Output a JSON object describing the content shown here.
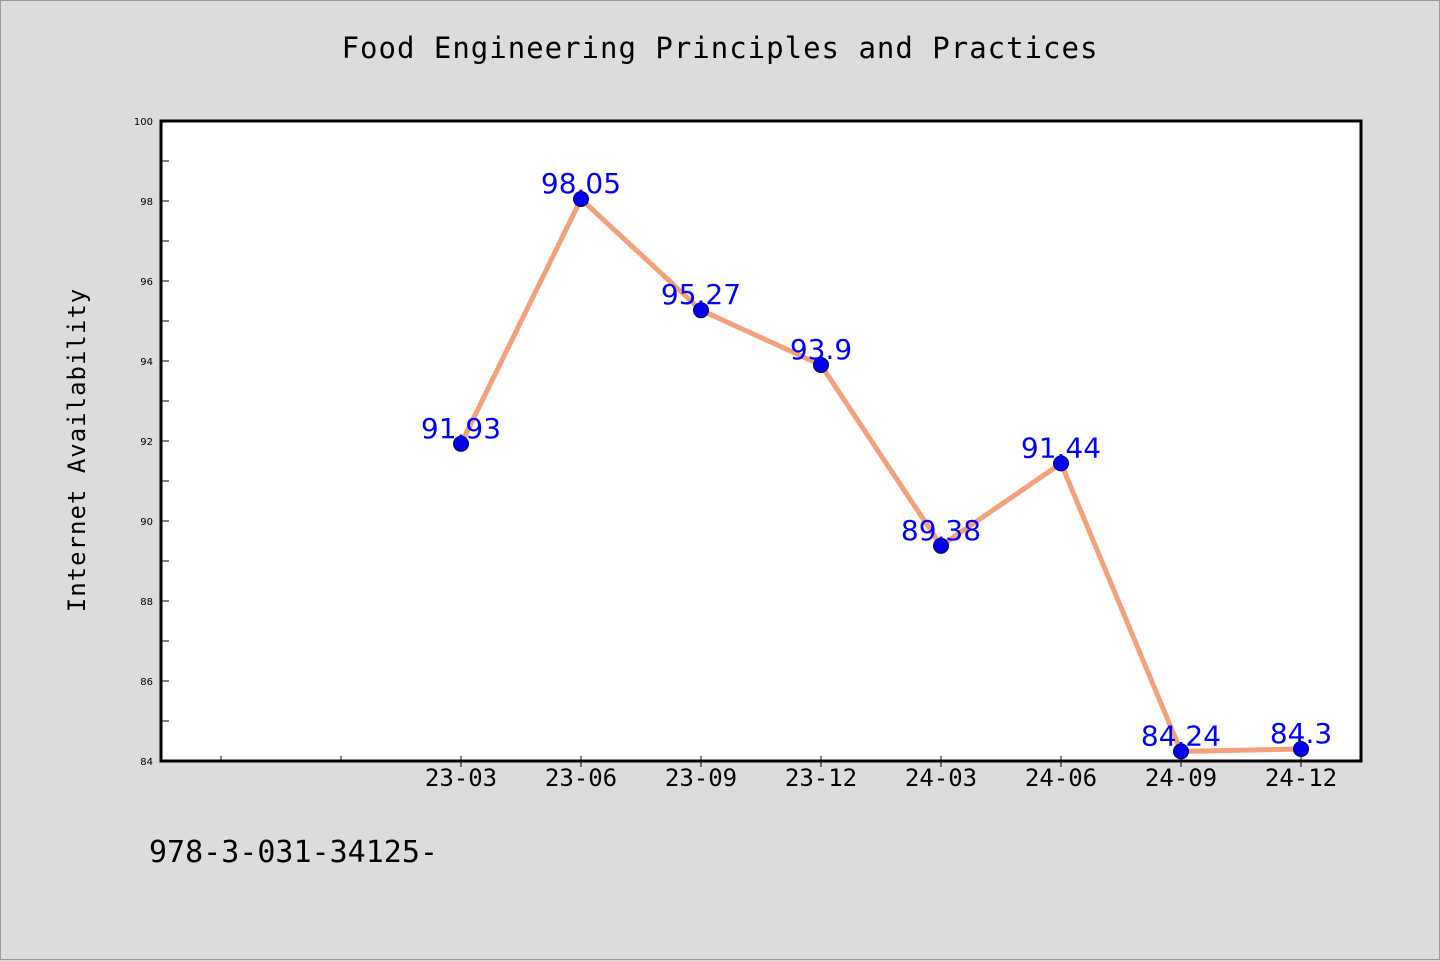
{
  "footer": {
    "text": "978-3-031-34125-"
  },
  "colors": {
    "background": "#dcdcdc",
    "plot_background": "#ffffff",
    "line": "#f4a07a",
    "marker": "#0000ee",
    "data_label": "#0000ff",
    "axis": "#000000"
  },
  "chart_data": {
    "type": "line",
    "title": "Food Engineering Principles and Practices",
    "xlabel": "",
    "ylabel": "Internet Availability",
    "categories": [
      "23-03",
      "23-06",
      "23-09",
      "23-12",
      "24-03",
      "24-06",
      "24-09",
      "24-12"
    ],
    "series": [
      {
        "values": [
          91.93,
          98.05,
          95.27,
          93.9,
          89.38,
          91.44,
          84.24,
          84.3
        ],
        "labels": [
          "91.93",
          "98.05",
          "95.27",
          "93.9",
          "89.38",
          "91.44",
          "84.24",
          "84.3"
        ]
      }
    ],
    "ylim": [
      84,
      100
    ],
    "yticks": [
      84,
      86,
      88,
      90,
      92,
      94,
      96,
      98,
      100
    ],
    "grid": false,
    "legend": "none"
  }
}
